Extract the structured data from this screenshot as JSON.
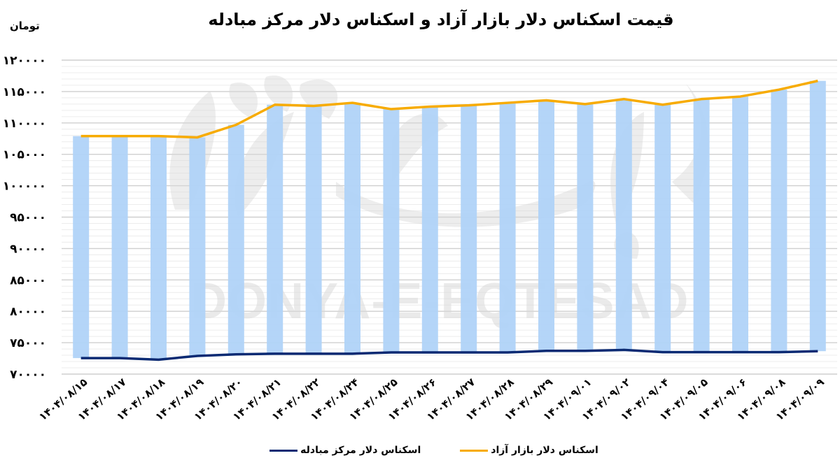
{
  "chart_title": "قیمت اسکناس دلار بازار آزاد و اسکناس دلار مرکز مبادله",
  "unit_label": "تومان",
  "watermark": "DONYA-E-EQTESAD",
  "legend": {
    "free_market": "اسکناس دلار بازار آزاد",
    "central_exchange": "اسکناس دلار مرکز مبادله"
  },
  "colors": {
    "bar": "#b0d3f8",
    "free_market_line": "#f7ab00",
    "central_exchange_line": "#0b2a73",
    "grid_major": "#cfcfcf",
    "grid_minor": "#ececec"
  },
  "y_tick_labels": [
    "۱۲۰۰۰۰",
    "۱۱۵۰۰۰",
    "۱۱۰۰۰۰",
    "۱۰۵۰۰۰",
    "۱۰۰۰۰۰",
    "۹۵۰۰۰",
    "۹۰۰۰۰",
    "۸۵۰۰۰",
    "۸۰۰۰۰",
    "۷۵۰۰۰",
    "۷۰۰۰۰"
  ],
  "x_tick_labels": [
    "۱۴۰۴/۰۸/۱۵",
    "۱۴۰۴/۰۸/۱۷",
    "۱۴۰۴/۰۸/۱۸",
    "۱۴۰۴/۰۸/۱۹",
    "۱۴۰۴/۰۸/۲۰",
    "۱۴۰۴/۰۸/۲۱",
    "۱۴۰۴/۰۸/۲۲",
    "۱۴۰۴/۰۸/۲۴",
    "۱۴۰۴/۰۸/۲۵",
    "۱۴۰۴/۰۸/۲۶",
    "۱۴۰۴/۰۸/۲۷",
    "۱۴۰۴/۰۸/۲۸",
    "۱۴۰۴/۰۸/۲۹",
    "۱۴۰۴/۰۹/۰۱",
    "۱۴۰۴/۰۹/۰۲",
    "۱۴۰۴/۰۹/۰۴",
    "۱۴۰۴/۰۹/۰۵",
    "۱۴۰۴/۰۹/۰۶",
    "۱۴۰۴/۰۹/۰۸",
    "۱۴۰۴/۰۹/۰۹"
  ],
  "chart_data": {
    "type": "line",
    "title": "قیمت اسکناس دلار بازار آزاد و اسکناس دلار مرکز مبادله",
    "xlabel": "",
    "ylabel": "تومان",
    "ylim": [
      70000,
      120000
    ],
    "y_major_step": 5000,
    "y_minor_step": 1000,
    "grid": true,
    "legend_position": "bottom",
    "categories": [
      "1404/08/15",
      "1404/08/17",
      "1404/08/18",
      "1404/08/19",
      "1404/08/20",
      "1404/08/21",
      "1404/08/22",
      "1404/08/24",
      "1404/08/25",
      "1404/08/26",
      "1404/08/27",
      "1404/08/28",
      "1404/08/29",
      "1404/09/01",
      "1404/09/02",
      "1404/09/04",
      "1404/09/05",
      "1404/09/06",
      "1404/09/08",
      "1404/09/09"
    ],
    "series": [
      {
        "name": "اسکناس دلار بازار آزاد",
        "type": "line",
        "color": "#f7ab00",
        "values": [
          107900,
          107900,
          107900,
          107700,
          109700,
          112900,
          112700,
          113200,
          112200,
          112600,
          112800,
          113200,
          113600,
          113000,
          113800,
          112900,
          113800,
          114200,
          115300,
          116700
        ]
      },
      {
        "name": "اسکناس دلار مرکز مبادله",
        "type": "line",
        "color": "#0b2a73",
        "values": [
          72550,
          72550,
          72300,
          72900,
          73150,
          73250,
          73250,
          73250,
          73450,
          73450,
          73450,
          73450,
          73700,
          73700,
          73850,
          73500,
          73500,
          73500,
          73500,
          73650
        ]
      }
    ],
    "bars": {
      "description": "floating bars spanning from central exchange rate up to free market rate",
      "color": "#b0d3f8"
    }
  }
}
